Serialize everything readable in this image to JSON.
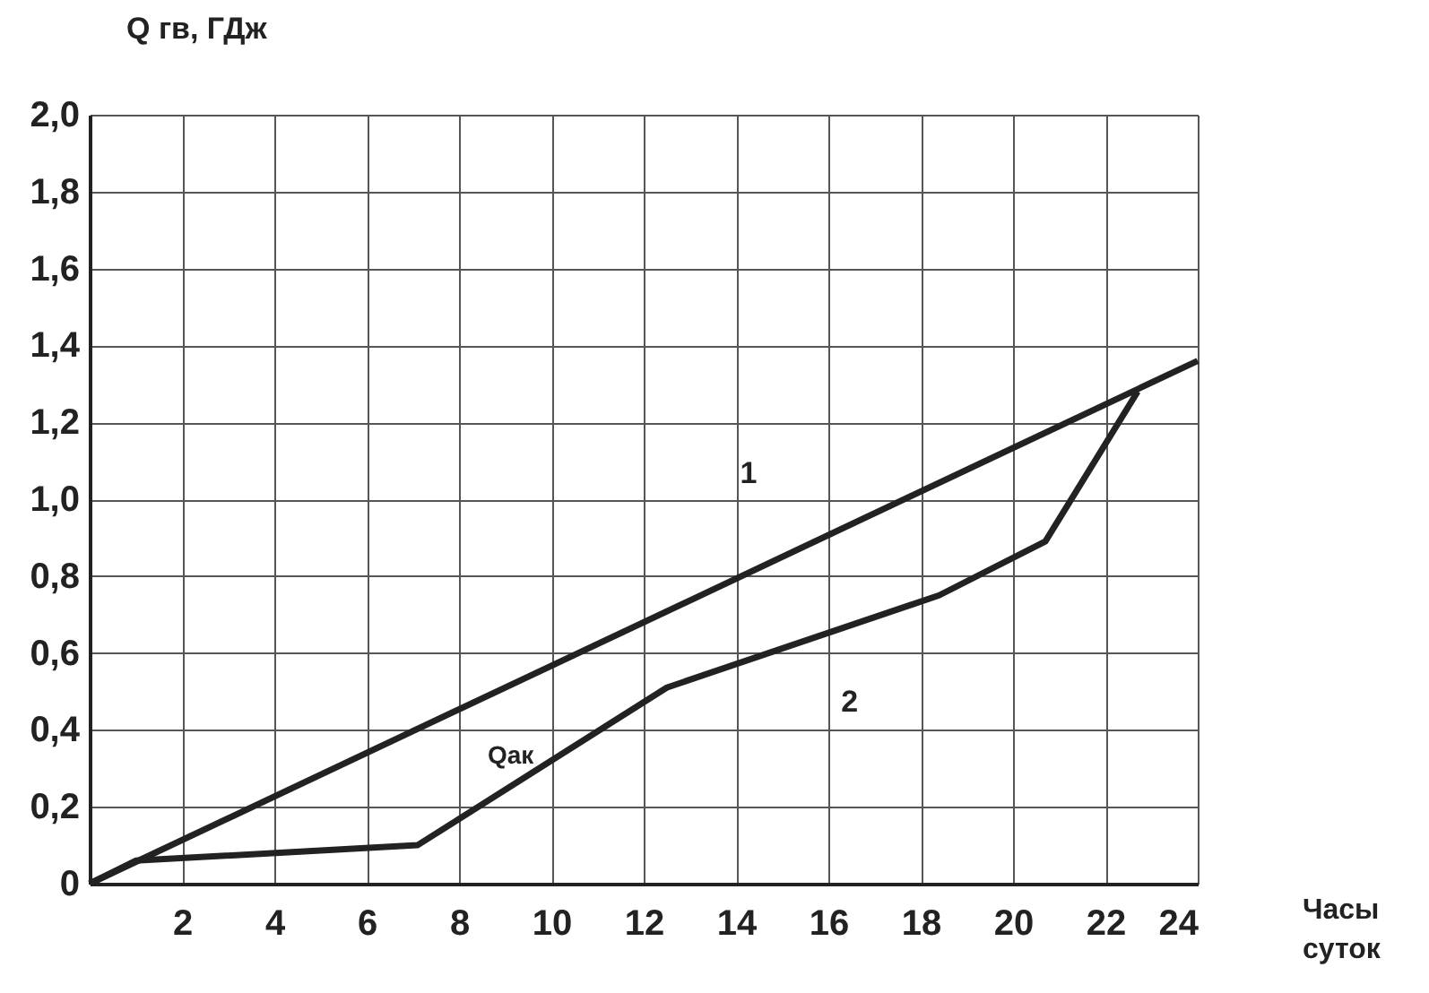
{
  "chart_data": {
    "type": "line",
    "xlabel": "Часы суток",
    "ylabel": "Q гв, ГДж",
    "series": [
      {
        "name": "1",
        "color": "#222222",
        "x": [
          0,
          24
        ],
        "values": [
          0,
          1.36
        ]
      },
      {
        "name": "2",
        "color": "#222222",
        "x": [
          0,
          1,
          7.1,
          12.5,
          18.4,
          20.7,
          22.7
        ],
        "values": [
          0,
          0.06,
          0.1,
          0.51,
          0.75,
          0.89,
          1.28
        ]
      }
    ],
    "annotations": [
      "Qак"
    ],
    "xlim": [
      0,
      24
    ],
    "xticks": [
      2,
      4,
      6,
      8,
      10,
      12,
      14,
      16,
      18,
      20,
      22,
      24
    ],
    "ylim": [
      0,
      2.0
    ],
    "yticks": [
      {
        "value": 0,
        "label": "0"
      },
      {
        "value": 0.2,
        "label": "0,2"
      },
      {
        "value": 0.4,
        "label": "0,4"
      },
      {
        "value": 0.6,
        "label": "0,6"
      },
      {
        "value": 0.8,
        "label": "0,8"
      },
      {
        "value": 1.0,
        "label": "1,0"
      },
      {
        "value": 1.2,
        "label": "1,2"
      },
      {
        "value": 1.4,
        "label": "1,4"
      },
      {
        "value": 1.6,
        "label": "1,6"
      },
      {
        "value": 1.8,
        "label": "1,8"
      },
      {
        "value": 2.0,
        "label": "2,0"
      }
    ],
    "grid": true,
    "marker": "none",
    "line_style": "solid"
  }
}
